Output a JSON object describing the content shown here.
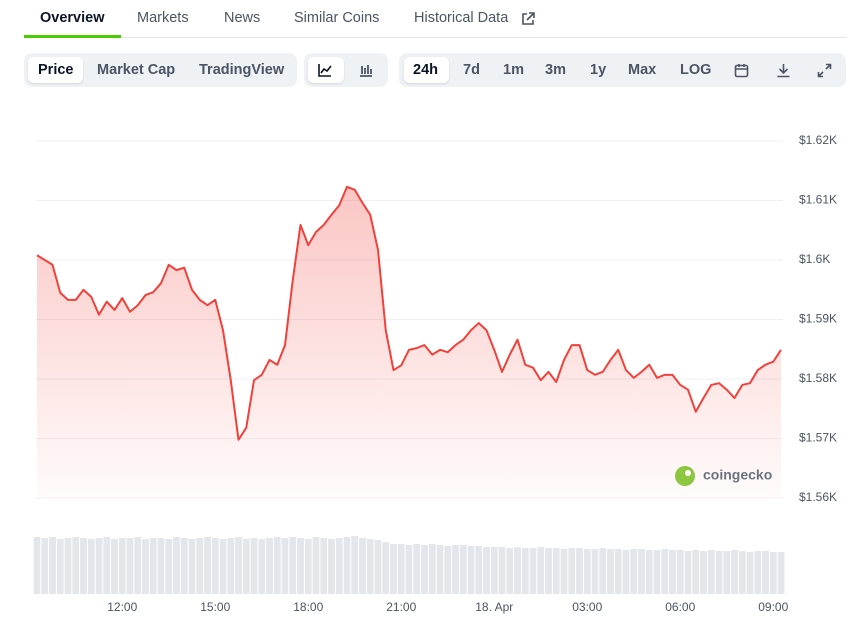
{
  "tabs": [
    "Overview",
    "Markets",
    "News",
    "Similar Coins",
    "Historical Data"
  ],
  "chart_toggles": [
    "Price",
    "Market Cap",
    "TradingView"
  ],
  "ranges": [
    "24h",
    "7d",
    "1m",
    "3m",
    "1y",
    "Max",
    "LOG"
  ],
  "watermark": "coingecko",
  "chart_data": {
    "type": "line",
    "categories": [
      null,
      null,
      null,
      null,
      null,
      null,
      null,
      null,
      null,
      null,
      null,
      "12:00",
      null,
      null,
      null,
      null,
      null,
      null,
      null,
      null,
      null,
      null,
      null,
      "15:00",
      null,
      null,
      null,
      null,
      null,
      null,
      null,
      null,
      null,
      null,
      null,
      "18:00",
      null,
      null,
      null,
      null,
      null,
      null,
      null,
      null,
      null,
      null,
      null,
      "21:00",
      null,
      null,
      null,
      null,
      null,
      null,
      null,
      null,
      null,
      null,
      null,
      "18. Apr",
      null,
      null,
      null,
      null,
      null,
      null,
      null,
      null,
      null,
      null,
      null,
      "03:00",
      null,
      null,
      null,
      null,
      null,
      null,
      null,
      null,
      null,
      null,
      null,
      "06:00",
      null,
      null,
      null,
      null,
      null,
      null,
      null,
      null,
      null,
      null,
      null,
      "09:00",
      null
    ],
    "series": [
      {
        "color": "#f0413a",
        "values": [
          1600.8,
          1600,
          1599.2,
          1594.5,
          1593.3,
          1593.3,
          1595,
          1593.8,
          1590.8,
          1593,
          1591.6,
          1593.6,
          1591.3,
          1592.4,
          1594.1,
          1594.6,
          1596.1,
          1599.2,
          1598.3,
          1598.7,
          1595,
          1593.3,
          1592.4,
          1593.3,
          1588.2,
          1579.8,
          1569.8,
          1571.8,
          1579.8,
          1580.7,
          1583.2,
          1582.4,
          1585.7,
          1596.6,
          1605.9,
          1602.5,
          1604.7,
          1605.9,
          1607.6,
          1609.2,
          1612.3,
          1611.8,
          1609.6,
          1607.6,
          1601.7,
          1588.2,
          1581.5,
          1582.3,
          1584.9,
          1585.2,
          1585.7,
          1584.1,
          1584.9,
          1584.5,
          1585.7,
          1586.6,
          1588.2,
          1589.4,
          1588.2,
          1584.9,
          1581.2,
          1584.1,
          1586.6,
          1582.4,
          1581.9,
          1579.8,
          1581.2,
          1579.5,
          1583.2,
          1585.7,
          1585.7,
          1581.5,
          1580.7,
          1581.2,
          1583.2,
          1584.9,
          1581.5,
          1580.2,
          1581.2,
          1582.4,
          1580.2,
          1580.7,
          1580.7,
          1579,
          1578.2,
          1574.5,
          1576.8,
          1579,
          1579.3,
          1578.2,
          1576.8,
          1579,
          1579.3,
          1581.5,
          1582.4,
          1582.9,
          1584.9
        ]
      }
    ],
    "volume": {
      "color": "#e3e6ea",
      "values": [
        57,
        56,
        57,
        55,
        56,
        57,
        56,
        55,
        56,
        57,
        55,
        56,
        56,
        57,
        55,
        56,
        56,
        55,
        57,
        56,
        55,
        56,
        57,
        56,
        55,
        56,
        57,
        55,
        56,
        55,
        56,
        57,
        56,
        57,
        56,
        55,
        57,
        56,
        55,
        56,
        57,
        58,
        56,
        55,
        54,
        52,
        50,
        50,
        49,
        50,
        49,
        50,
        49,
        48,
        49,
        49,
        48,
        48,
        47,
        47,
        47,
        46,
        47,
        46,
        46,
        47,
        46,
        46,
        45,
        46,
        46,
        45,
        45,
        46,
        45,
        45,
        44,
        45,
        45,
        44,
        44,
        45,
        44,
        44,
        43,
        44,
        43,
        44,
        43,
        43,
        44,
        43,
        42,
        43,
        43,
        42,
        42
      ]
    },
    "ylim": [
      1560,
      1620
    ],
    "yticks": [
      {
        "value": 1620,
        "label": "$1.62K"
      },
      {
        "value": 1610,
        "label": "$1.61K"
      },
      {
        "value": 1600,
        "label": "$1.6K"
      },
      {
        "value": 1590,
        "label": "$1.59K"
      },
      {
        "value": 1580,
        "label": "$1.58K"
      },
      {
        "value": 1570,
        "label": "$1.57K"
      },
      {
        "value": 1560,
        "label": "$1.56K"
      }
    ],
    "grid": true
  }
}
